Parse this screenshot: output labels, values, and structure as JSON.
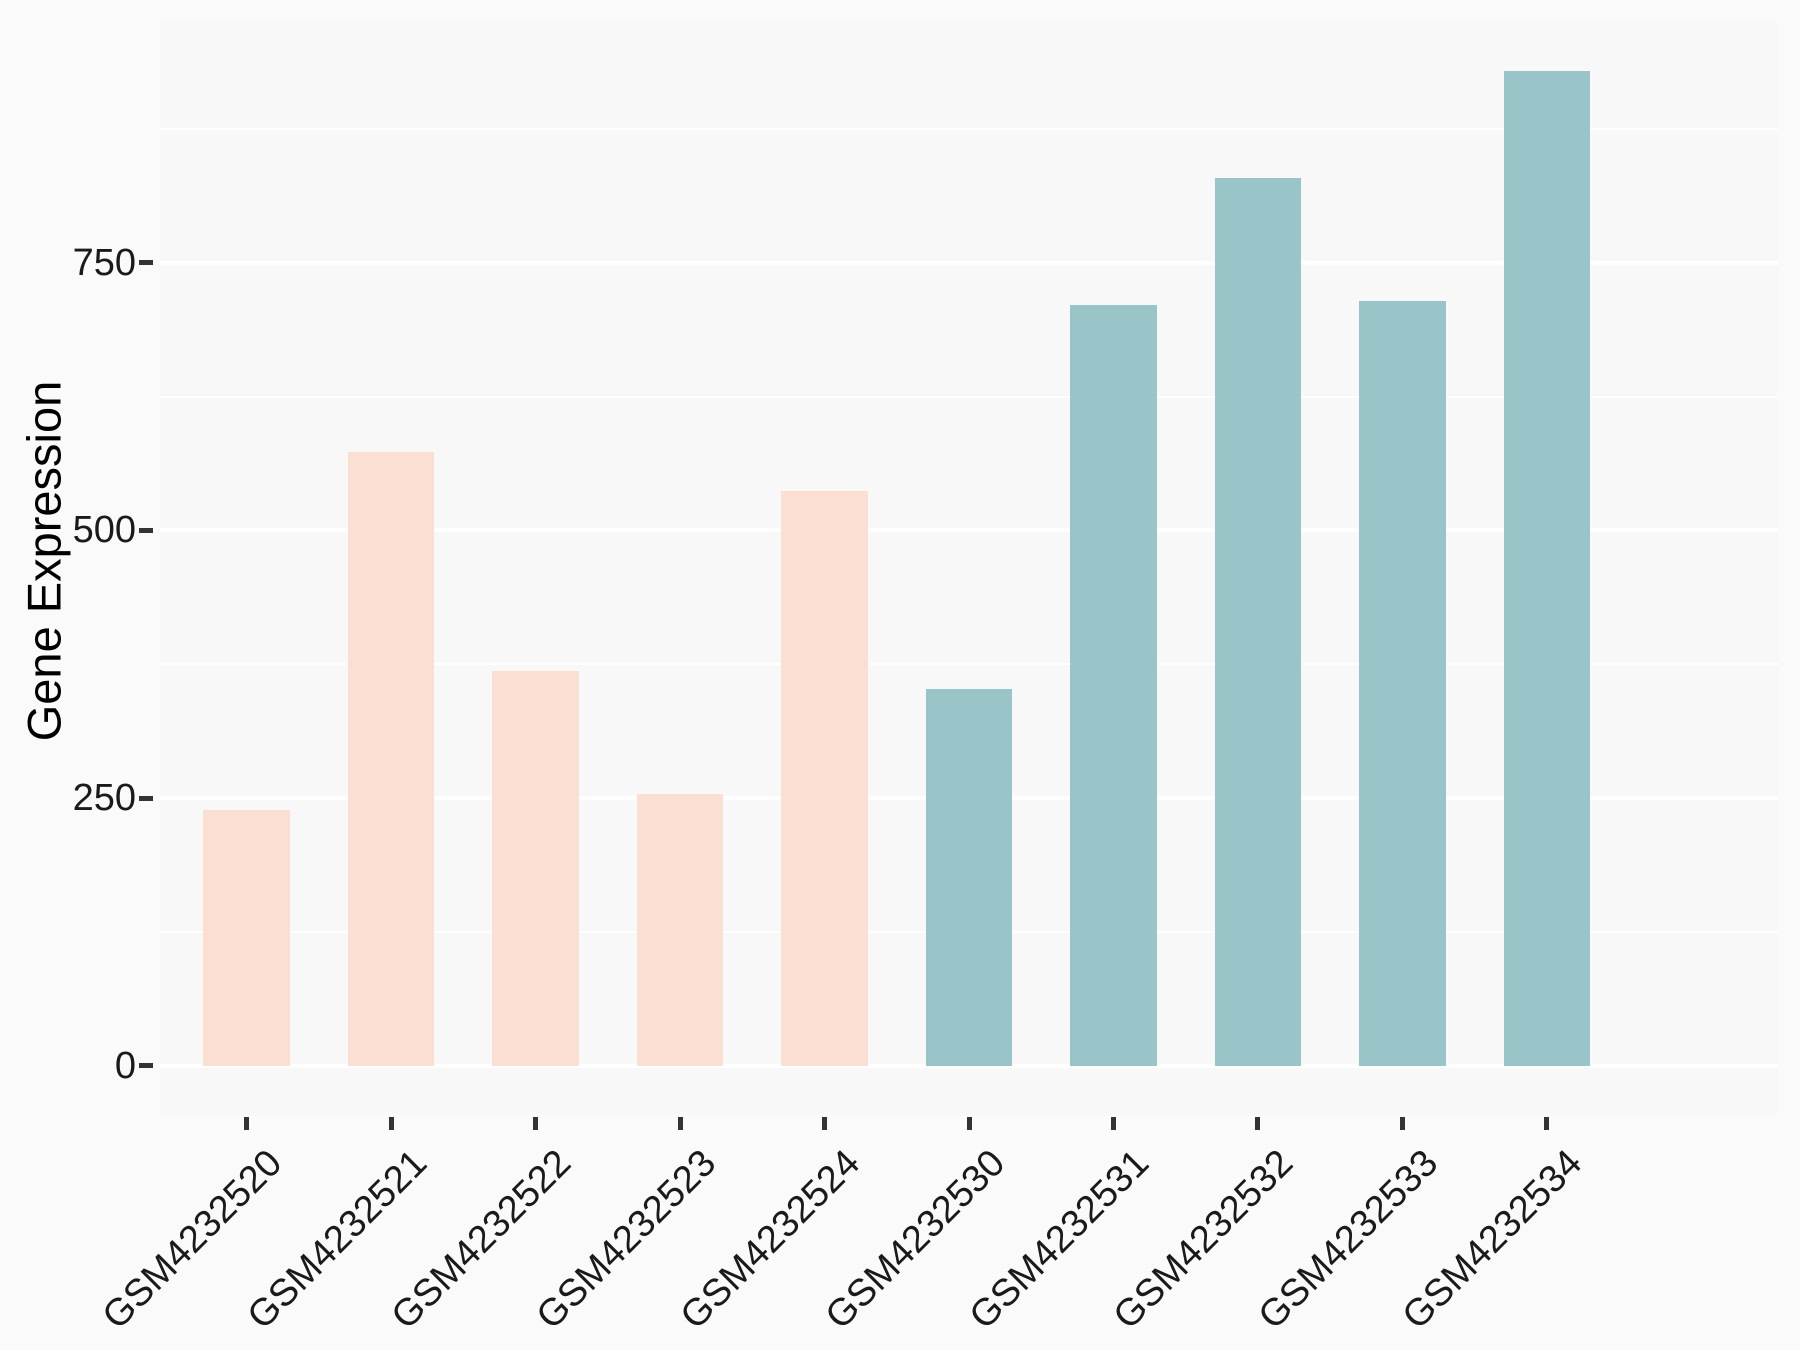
{
  "chart_data": {
    "type": "bar",
    "title": "",
    "xlabel": "",
    "ylabel": "Gene Expression",
    "categories": [
      "GSM4232520",
      "GSM4232521",
      "GSM4232522",
      "GSM4232523",
      "GSM4232524",
      "GSM4232530",
      "GSM4232531",
      "GSM4232532",
      "GSM4232533",
      "GSM4232534"
    ],
    "values": [
      239,
      573,
      369,
      254,
      537,
      352,
      711,
      829,
      714,
      929
    ],
    "bar_colors": [
      "#FCDFD3",
      "#FCDFD3",
      "#FCDFD3",
      "#FCDFD3",
      "#FCDFD3",
      "#99C4C8",
      "#99C4C8",
      "#99C4C8",
      "#99C4C8",
      "#99C4C8"
    ],
    "yticks": [
      0,
      250,
      500,
      750
    ],
    "ytick_labels": [
      "0",
      "250",
      "500",
      "750"
    ],
    "ylim": [
      -46,
      975
    ],
    "legend": "none",
    "grid": {
      "on": true,
      "major_color": "#FFFFFF",
      "minor_color": "#FFFFFF"
    },
    "colors": {
      "pink_series": "#FCDFD3",
      "teal_series": "#99C4C8",
      "panel_bg": "#F8F8F8",
      "page_bg": "#FAFAFA",
      "tick_mark": "#333333",
      "axis_text": "#1A1A1A",
      "axis_title": "#000000"
    }
  }
}
